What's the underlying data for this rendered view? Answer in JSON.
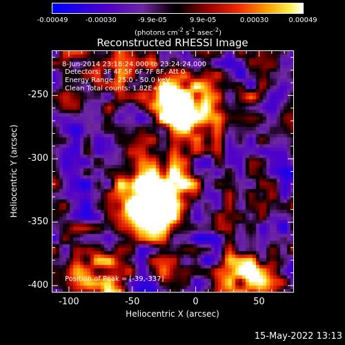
{
  "colorbar": {
    "ticks": [
      {
        "value": -0.00049,
        "label": "-0.00049"
      },
      {
        "value": -0.0003,
        "label": "-0.00030"
      },
      {
        "value": -9.9e-05,
        "label": "-9.9e-05"
      },
      {
        "value": 9.9e-05,
        "label": "9.9e-05"
      },
      {
        "value": 0.0003,
        "label": "0.00030"
      },
      {
        "value": 0.00049,
        "label": "0.00049"
      }
    ],
    "min": -0.00049,
    "max": 0.00049,
    "units_main": "(photons cm",
    "units_exp1": "-2",
    "units_mid": " s",
    "units_exp2": "-1",
    "units_mid2": " asec",
    "units_exp3": "-2",
    "units_end": ")"
  },
  "title": "Reconstructed RHESSI Image",
  "annotations": {
    "time_range": "8-Jun-2014 23:18:24.000 to 23:24:24.000",
    "detectors": "Detectors: 3F 4F 5F 6F 7F 8F, Att 0",
    "energy": "Energy Range: 25.0 - 50.0 keV",
    "clean": "Clean     Total counts: 1.82E+04",
    "peak": "Position of Peak = [-39,-337]"
  },
  "axes": {
    "xlabel": "Heliocentric X (arcsec)",
    "ylabel": "Heliocentric Y (arcsec)",
    "xlim": [
      -113,
      77
    ],
    "ylim": [
      -405,
      -215
    ],
    "xticks": [
      {
        "value": -100,
        "label": "-100"
      },
      {
        "value": -50,
        "label": "-50"
      },
      {
        "value": 0,
        "label": "0"
      },
      {
        "value": 50,
        "label": "50"
      }
    ],
    "yticks": [
      {
        "value": -250,
        "label": "-250"
      },
      {
        "value": -300,
        "label": "-300"
      },
      {
        "value": -350,
        "label": "-350"
      },
      {
        "value": -400,
        "label": "-400"
      }
    ]
  },
  "sources": [
    {
      "x": -8,
      "y": -262,
      "weight": 1.0
    },
    {
      "x": -25,
      "y": -240,
      "weight": 0.55
    },
    {
      "x": -42,
      "y": -337,
      "weight": 1.0
    },
    {
      "x": -25,
      "y": -318,
      "weight": 0.5
    },
    {
      "x": -80,
      "y": -392,
      "weight": 0.7
    },
    {
      "x": 40,
      "y": -395,
      "weight": 0.6
    }
  ],
  "timestamp": "15-May-2022 13:13"
}
